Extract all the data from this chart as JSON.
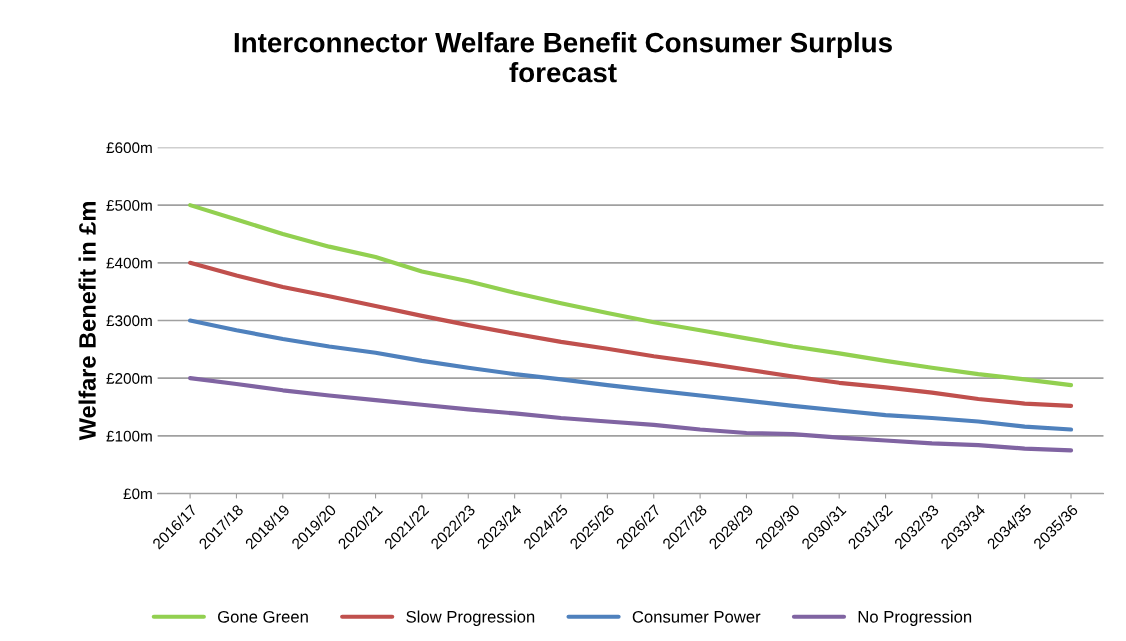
{
  "chart_data": {
    "type": "line",
    "title": "Interconnector Welfare Benefit Consumer Surplus\nforecast",
    "ylabel": "Welfare Benefit in £m",
    "categories": [
      "2016/17",
      "2017/18",
      "2018/19",
      "2019/20",
      "2020/21",
      "2021/22",
      "2022/23",
      "2023/24",
      "2024/25",
      "2025/26",
      "2026/27",
      "2027/28",
      "2028/29",
      "2029/30",
      "2030/31",
      "2031/32",
      "2032/33",
      "2033/34",
      "2034/35",
      "2035/36"
    ],
    "series": [
      {
        "name": "Gone Green",
        "color": "#92d050",
        "values": [
          500,
          475,
          450,
          428,
          410,
          385,
          368,
          348,
          330,
          313,
          297,
          283,
          269,
          255,
          243,
          230,
          218,
          207,
          198,
          188
        ]
      },
      {
        "name": "Slow Progression",
        "color": "#c0504d",
        "values": [
          400,
          378,
          358,
          342,
          325,
          308,
          292,
          277,
          263,
          251,
          238,
          227,
          215,
          203,
          192,
          184,
          175,
          164,
          156,
          152
        ]
      },
      {
        "name": "Consumer Power",
        "color": "#4f81bd",
        "values": [
          300,
          283,
          268,
          255,
          244,
          230,
          218,
          207,
          198,
          188,
          179,
          170,
          161,
          152,
          144,
          136,
          131,
          125,
          116,
          111
        ]
      },
      {
        "name": "No Progression",
        "color": "#8064a2",
        "values": [
          200,
          190,
          179,
          170,
          162,
          154,
          146,
          139,
          131,
          125,
          119,
          111,
          105,
          103,
          97,
          92,
          87,
          84,
          78,
          75
        ]
      }
    ],
    "ylim": [
      0,
      600
    ],
    "yticks": [
      {
        "value": 0,
        "label": "£0m"
      },
      {
        "value": 100,
        "label": "£100m"
      },
      {
        "value": 200,
        "label": "£200m"
      },
      {
        "value": 300,
        "label": "£300m"
      },
      {
        "value": 400,
        "label": "£400m"
      },
      {
        "value": 500,
        "label": "£500m"
      },
      {
        "value": 600,
        "label": "£600m"
      }
    ],
    "grid": "y",
    "legend": "bottom",
    "marker": "none",
    "line_style": "solid"
  }
}
